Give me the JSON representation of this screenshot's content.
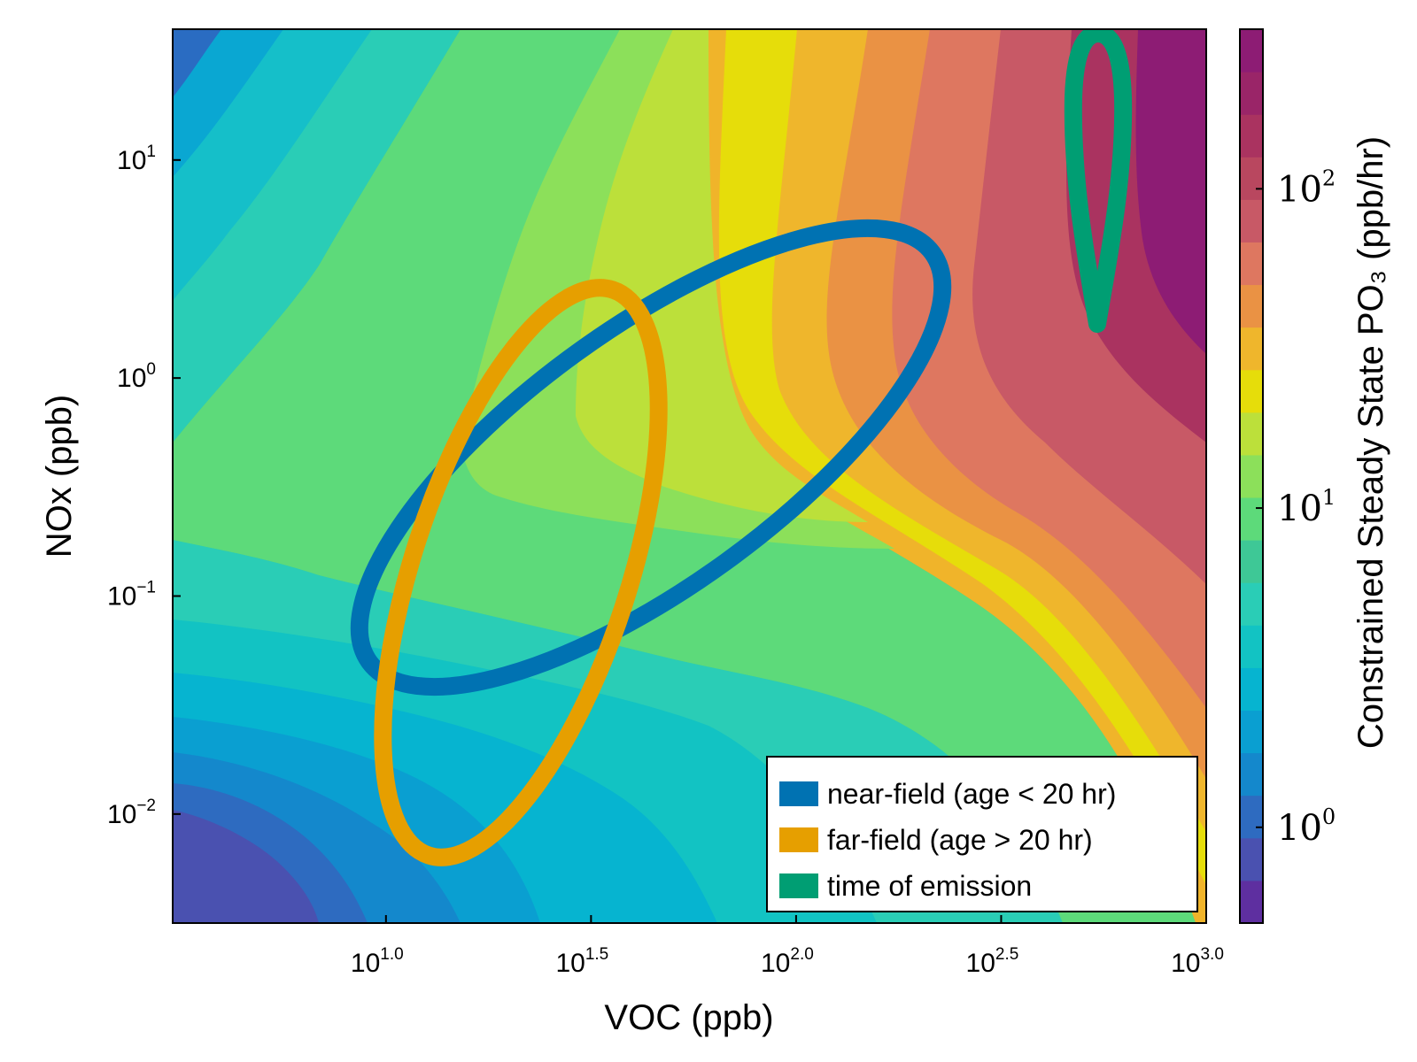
{
  "chart_data": {
    "type": "heatmap",
    "subtype": "filled-contour",
    "title": "",
    "xlabel": "VOC (ppb)",
    "ylabel": "NOx (ppb)",
    "colorbar_label": "Constrained Steady State PO₃ (ppb/hr)",
    "x_scale": "log10",
    "y_scale": "log10",
    "colorbar_scale": "log10",
    "xlim_log10": [
      0.48,
      3.0
    ],
    "ylim_log10": [
      -2.5,
      1.6
    ],
    "colorbar_range_log10": [
      -0.3,
      2.5
    ],
    "colormap": "viridis-like multi-hue (purple-blue-teal-green-yellow-orange-red-magenta)",
    "contour_levels": 20,
    "x_ticks": [
      {
        "base": "10",
        "exp": "1.0"
      },
      {
        "base": "10",
        "exp": "1.5"
      },
      {
        "base": "10",
        "exp": "2.0"
      },
      {
        "base": "10",
        "exp": "2.5"
      },
      {
        "base": "10",
        "exp": "3.0"
      }
    ],
    "x_tick_values_log10": [
      1.0,
      1.5,
      2.0,
      2.5,
      3.0
    ],
    "y_ticks": [
      {
        "base": "10",
        "exp": "1"
      },
      {
        "base": "10",
        "exp": "0"
      },
      {
        "base": "10",
        "exp": "−1"
      },
      {
        "base": "10",
        "exp": "−2"
      }
    ],
    "y_tick_values_log10": [
      1,
      0,
      -1,
      -2
    ],
    "colorbar_ticks": [
      {
        "base": "10",
        "exp": "2"
      },
      {
        "base": "10",
        "exp": "1"
      },
      {
        "base": "10",
        "exp": "0"
      }
    ],
    "colorbar_tick_values_log10": [
      2,
      1,
      0
    ],
    "grid": false,
    "legend_position": "bottom-right",
    "series": [
      {
        "name": "near-field (age < 20 hr)",
        "kind": "confidence-ellipse",
        "color": "#0072B2",
        "center_log10": [
          1.67,
          -0.36
        ],
        "x_extent_log10": [
          0.95,
          2.36
        ],
        "y_extent_log10": [
          -1.6,
          0.88
        ]
      },
      {
        "name": "far-field (age > 20 hr)",
        "kind": "confidence-ellipse",
        "color": "#E69F00",
        "center_log10": [
          1.35,
          -0.7
        ],
        "x_extent_log10": [
          0.92,
          1.74
        ],
        "y_extent_log10": [
          -2.35,
          0.5
        ]
      },
      {
        "name": "time of emission",
        "kind": "confidence-ellipse",
        "color": "#009E73",
        "center_log10": [
          2.74,
          1.1
        ],
        "x_extent_log10": [
          2.68,
          2.8
        ],
        "y_extent_log10": [
          0.25,
          1.6
        ]
      }
    ],
    "legend": [
      {
        "label": "near-field (age < 20 hr)",
        "color": "#0072B2"
      },
      {
        "label": "far-field (age > 20 hr)",
        "color": "#E69F00"
      },
      {
        "label": "time of emission",
        "color": "#009E73"
      }
    ]
  }
}
